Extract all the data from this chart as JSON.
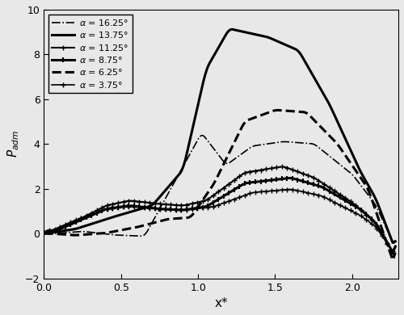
{
  "xlabel": "x*",
  "ylabel": "$P_{adm}$",
  "xlim": [
    0.0,
    2.3
  ],
  "ylim": [
    -2,
    10
  ],
  "yticks": [
    -2,
    0,
    2,
    4,
    6,
    8,
    10
  ],
  "xticks": [
    0.0,
    0.5,
    1.0,
    1.5,
    2.0
  ],
  "background_color": "#e8e8e8",
  "legend_labels": [
    "$\\alpha$ = 16.25°",
    "$\\alpha$ = 13.75°",
    "$\\alpha$ = 11.25°",
    "$\\alpha$ = 8.75°",
    "$\\alpha$ = 6.25°",
    "$\\alpha$ = 3.75°"
  ],
  "line_styles": [
    {
      "ls": "-.",
      "lw": 1.2,
      "marker": "None",
      "ms": 0,
      "color": "black",
      "mew": 1.0
    },
    {
      "ls": "-",
      "lw": 2.2,
      "marker": "None",
      "ms": 0,
      "color": "black",
      "mew": 1.0
    },
    {
      "ls": "-",
      "lw": 1.5,
      "marker": "+",
      "ms": 4,
      "color": "black",
      "mew": 1.0
    },
    {
      "ls": "-",
      "lw": 2.2,
      "marker": "|",
      "ms": 5,
      "color": "black",
      "mew": 1.5
    },
    {
      "ls": "--",
      "lw": 2.2,
      "marker": "None",
      "ms": 0,
      "color": "black",
      "mew": 1.0
    },
    {
      "ls": "-",
      "lw": 1.2,
      "marker": "+",
      "ms": 4,
      "color": "black",
      "mew": 1.0
    }
  ]
}
